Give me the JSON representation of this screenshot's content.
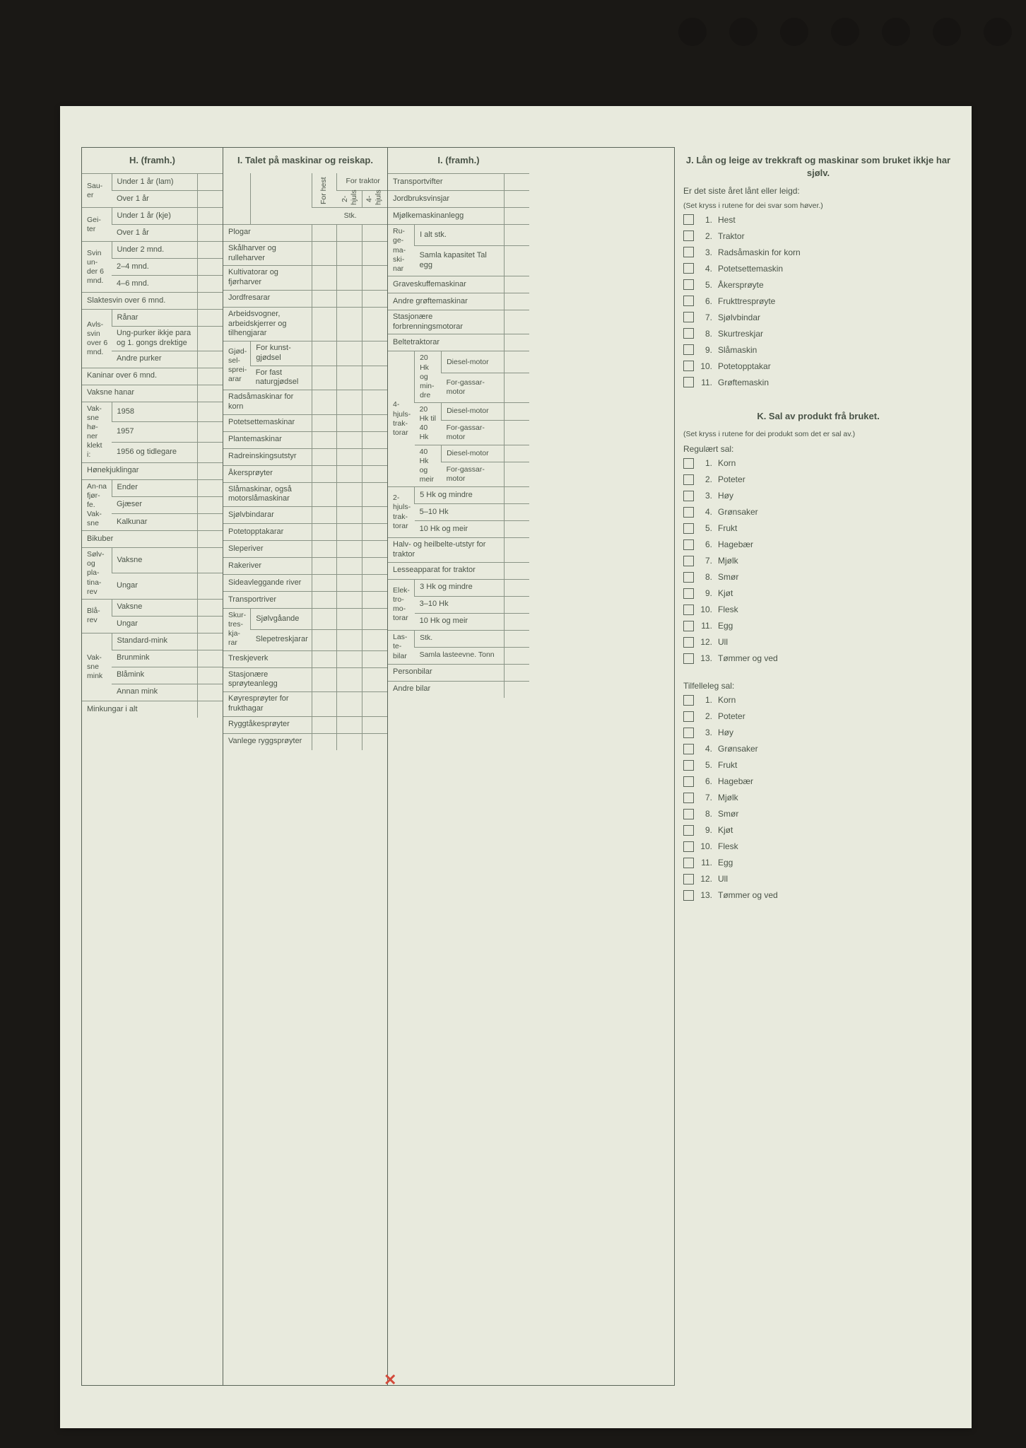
{
  "colors": {
    "page_bg": "#e8eadd",
    "outer_bg": "#1a1815",
    "border": "#5a6458",
    "light_border": "#8a9486",
    "text": "#4a5448",
    "red_mark": "#d34a3a"
  },
  "holes": 7,
  "H": {
    "title": "H. (framh.)",
    "rows": [
      {
        "group": "Sau-er",
        "sub": "Under 1 år (lam)"
      },
      {
        "group": "",
        "sub": "Over 1 år"
      },
      {
        "group": "Gei-ter",
        "sub": "Under 1 år (kje)"
      },
      {
        "group": "",
        "sub": "Over 1 år"
      },
      {
        "group": "Svin un-der 6 mnd.",
        "sub": "Under 2 mnd."
      },
      {
        "group": "",
        "sub": "2–4 mnd."
      },
      {
        "group": "",
        "sub": "4–6 mnd."
      },
      {
        "span": "Slaktesvin over 6 mnd."
      },
      {
        "group": "Avls-svin over 6 mnd.",
        "sub": "Rånar"
      },
      {
        "group": "",
        "sub": "Ung-purker ikkje para og 1. gongs drektige"
      },
      {
        "group": "",
        "sub": "Andre purker"
      },
      {
        "span": "Kaninar over 6 mnd."
      },
      {
        "span": "Vaksne hanar"
      },
      {
        "group": "Vak-sne hø-ner klekt i:",
        "sub": "1958"
      },
      {
        "group": "",
        "sub": "1957"
      },
      {
        "group": "",
        "sub": "1956 og tidlegare"
      },
      {
        "span": "Hønekjuklingar"
      },
      {
        "group": "An-na fjør-fe. Vak-sne",
        "sub": "Ender"
      },
      {
        "group": "",
        "sub": "Gjæser"
      },
      {
        "group": "",
        "sub": "Kalkunar"
      },
      {
        "span": "Bikuber"
      },
      {
        "group": "Sølv- og pla-tina-rev",
        "sub": "Vaksne"
      },
      {
        "group": "",
        "sub": "Ungar"
      },
      {
        "group": "Blå-rev",
        "sub": "Vaksne"
      },
      {
        "group": "",
        "sub": "Ungar"
      },
      {
        "group": "Vak-sne mink",
        "sub": "Standard-mink"
      },
      {
        "group": "",
        "sub": "Brunmink"
      },
      {
        "group": "",
        "sub": "Blåmink"
      },
      {
        "group": "",
        "sub": "Annan mink"
      },
      {
        "span": "Minkungar i alt"
      }
    ]
  },
  "I1": {
    "title": "I. Talet på maskinar og reiskap.",
    "col_heads": {
      "a": "For hest",
      "b": "2-hjuls",
      "c": "4-hjuls",
      "group": "For traktor",
      "stk": "Stk."
    },
    "rows": [
      "Plogar",
      "Skålharver og rulleharver",
      "Kultivatorar og fjørharver",
      "Jordfresarar",
      "Arbeidsvogner, arbeidskjerrer og tilhengjarar"
    ],
    "gjod_label": "Gjød-sel-sprei-arar",
    "gjod_rows": [
      "For kunst-gjødsel",
      "For fast naturgjødsel"
    ],
    "rows2": [
      "Radsåmaskinar for korn",
      "Potetsettemaskinar",
      "Plantemaskinar",
      "Radreinskingsutstyr",
      "Åkersprøyter",
      "Slåmaskinar, også motorslåmaskinar",
      "Sjølvbindarar",
      "Potetopptakarar",
      "Sleperiver",
      "Rakeriver",
      "Sideavleggande river",
      "Transportriver"
    ],
    "skur_label": "Skur-tres-kja-rar",
    "skur_rows": [
      "Sjølvgåande",
      "Slepetreskjarar"
    ],
    "rows3": [
      "Treskjeverk",
      "Stasjonære sprøyteanlegg",
      "Køyresprøyter for frukthagar",
      "Ryggtåkesprøyter",
      "Vanlege ryggsprøyter"
    ]
  },
  "I2": {
    "title": "I. (framh.)",
    "top_rows": [
      "Transportvifter",
      "Jordbruksvinsjar",
      "Mjølkemaskinanlegg"
    ],
    "ruge_label": "Ru-ge-ma-ski-nar",
    "ruge_rows": [
      "I alt stk.",
      "Samla kapasitet Tal egg"
    ],
    "mid_rows": [
      "Graveskuffemaskinar",
      "Andre grøftemaskinar",
      "Stasjonære forbrenningsmotorar",
      "Beltetraktorar"
    ],
    "fire_label": "4-hjuls-trak-torar",
    "fire_groups": [
      {
        "hk": "20 Hk og min-dre",
        "rows": [
          "Diesel-motor",
          "For-gassar-motor"
        ]
      },
      {
        "hk": "20 Hk til 40 Hk",
        "rows": [
          "Diesel-motor",
          "For-gassar-motor"
        ]
      },
      {
        "hk": "40 Hk og meir",
        "rows": [
          "Diesel-motor",
          "For-gassar-motor"
        ]
      }
    ],
    "to_label": "2-hjuls-trak-torar",
    "to_rows": [
      "5 Hk og mindre",
      "5–10 Hk",
      "10 Hk og meir"
    ],
    "halv": "Halv- og heilbelte-utstyr for traktor",
    "lesse": "Lesseapparat for traktor",
    "elek_label": "Elek-tro-mo-torar",
    "elek_rows": [
      "3 Hk og mindre",
      "3–10 Hk",
      "10 Hk og meir"
    ],
    "laste_label": "Las-te-bilar",
    "laste_rows": [
      "Stk.",
      "Samla lasteevne. Tonn"
    ],
    "person": "Personbilar",
    "andre": "Andre bilar"
  },
  "J": {
    "title": "J. Lån og leige av trekkraft og maskinar som bruket ikkje har sjølv.",
    "intro1": "Er det siste året lånt eller leigd:",
    "intro2": "(Set kryss i rutene for dei svar som høver.)",
    "items": [
      "Hest",
      "Traktor",
      "Radsåmaskin for korn",
      "Potetsettemaskin",
      "Åkersprøyte",
      "Frukttresprøyte",
      "Sjølvbindar",
      "Skurtreskjar",
      "Slåmaskin",
      "Potetopptakar",
      "Grøftemaskin"
    ]
  },
  "K": {
    "title": "K. Sal av produkt frå bruket.",
    "intro": "(Set kryss i rutene for dei produkt som det er sal av.)",
    "reg_head": "Regulært sal:",
    "reg": [
      "Korn",
      "Poteter",
      "Høy",
      "Grønsaker",
      "Frukt",
      "Hagebær",
      "Mjølk",
      "Smør",
      "Kjøt",
      "Flesk",
      "Egg",
      "Ull",
      "Tømmer og ved"
    ],
    "til_head": "Tilfelleleg sal:",
    "til": [
      "Korn",
      "Poteter",
      "Høy",
      "Grønsaker",
      "Frukt",
      "Hagebær",
      "Mjølk",
      "Smør",
      "Kjøt",
      "Flesk",
      "Egg",
      "Ull",
      "Tømmer og ved"
    ]
  },
  "red_mark": "✕"
}
